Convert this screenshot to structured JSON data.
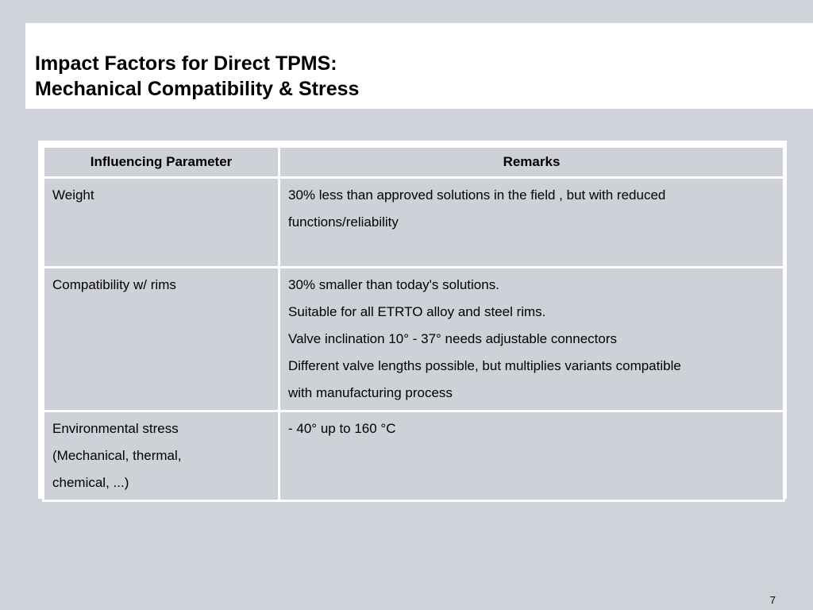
{
  "slide": {
    "title_lines": [
      "Impact Factors for Direct TPMS:",
      "Mechanical Compatibility & Stress"
    ],
    "page_number": "7"
  },
  "table": {
    "headers": [
      "Influencing Parameter",
      "Remarks"
    ],
    "rows": [
      {
        "parameter_lines": [
          "Weight"
        ],
        "remark_lines": [
          "30% less than approved solutions in the field , but with reduced",
          "functions/reliability"
        ]
      },
      {
        "parameter_lines": [
          "Compatibility w/ rims"
        ],
        "remark_lines": [
          "30% smaller than today's solutions.",
          "Suitable for all ETRTO alloy and steel rims.",
          "Valve inclination 10° - 37° needs adjustable connectors",
          "Different valve lengths possible, but multiplies variants compatible",
          "with manufacturing process"
        ]
      },
      {
        "parameter_lines": [
          "Environmental stress",
          "(Mechanical, thermal,",
          "chemical, ...)"
        ],
        "remark_lines": [
          "- 40° up to 160 °C"
        ]
      }
    ]
  },
  "colors": {
    "background": "#d0d2d9",
    "title_band": "#ffffff",
    "cell": "#cfd1d8",
    "cell_border": "#ffffff"
  }
}
